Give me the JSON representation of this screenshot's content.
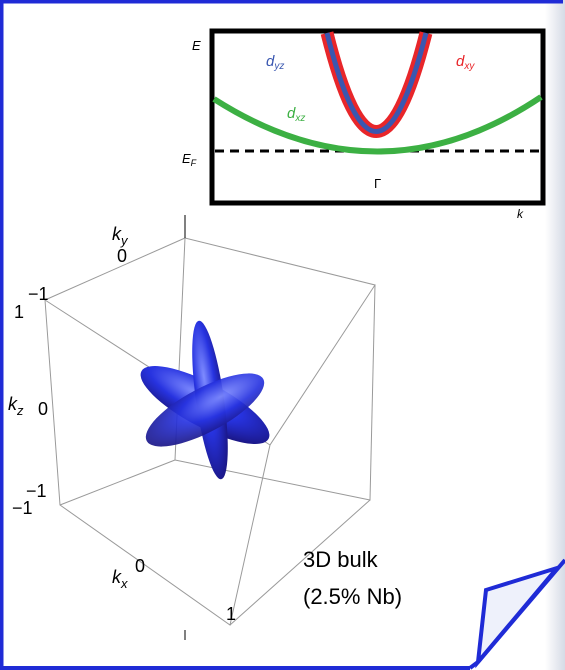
{
  "inset": {
    "e_label": "E",
    "ef_label": {
      "symbol": "E",
      "subscript": "F"
    },
    "gamma_label": "Γ",
    "k_label": "k",
    "bands": [
      {
        "symbol": "d",
        "subscript": "yz"
      },
      {
        "symbol": "d",
        "subscript": "xy"
      },
      {
        "symbol": "d",
        "subscript": "xz"
      }
    ]
  },
  "cube": {
    "ky": {
      "symbol": "k",
      "subscript": "y"
    },
    "kz": {
      "symbol": "k",
      "subscript": "z"
    },
    "kx": {
      "symbol": "k",
      "subscript": "x"
    },
    "ticks": [
      "0",
      "−1",
      "1",
      "0",
      "−1",
      "−1",
      "0",
      "1"
    ]
  },
  "caption": [
    "3D bulk",
    "(2.5% Nb)"
  ]
}
